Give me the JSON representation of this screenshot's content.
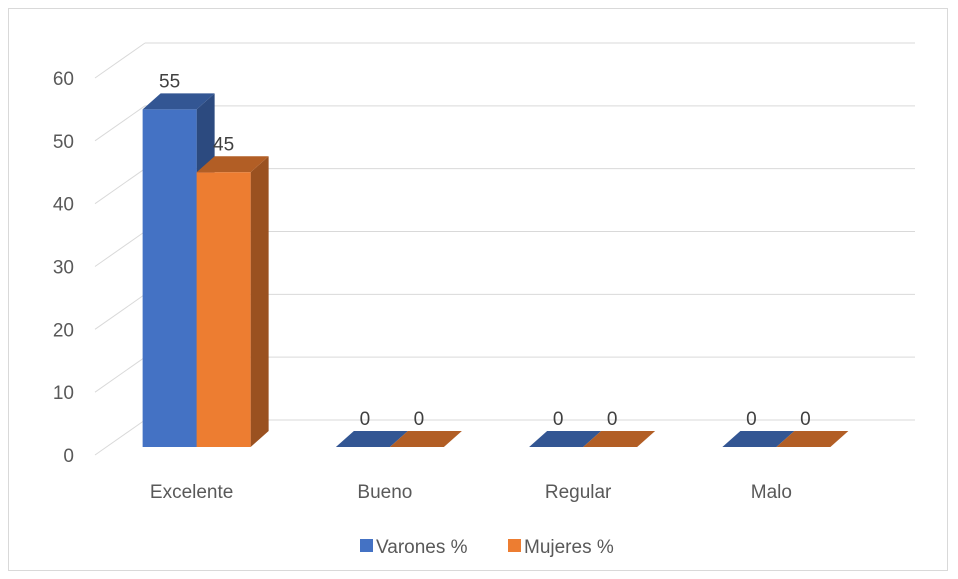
{
  "chart_data": {
    "type": "bar",
    "style": "3d-clustered-column",
    "categories": [
      "Excelente",
      "Bueno",
      "Regular",
      "Malo"
    ],
    "series": [
      {
        "name": "Varones %",
        "values": [
          55,
          0,
          0,
          0
        ],
        "color": "#4472c4"
      },
      {
        "name": "Mujeres %",
        "values": [
          45,
          0,
          0,
          0
        ],
        "color": "#ed7d31"
      }
    ],
    "ylim": [
      0,
      60
    ],
    "yticks": [
      0,
      10,
      20,
      30,
      40,
      50,
      60
    ],
    "grid": true,
    "legend": "bottom",
    "title": "",
    "xlabel": "",
    "ylabel": ""
  }
}
